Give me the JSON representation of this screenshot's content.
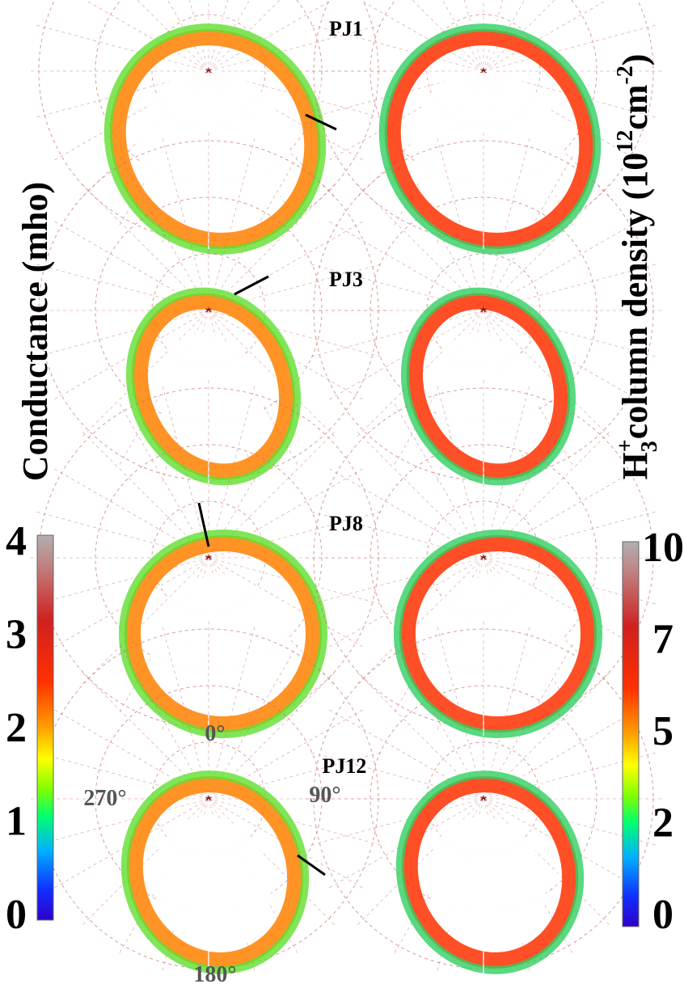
{
  "chart_data": {
    "type": "heatmap",
    "projection": "polar (north-pole view of Jupiter's aurora)",
    "perijoves": [
      {
        "label": "PJ1"
      },
      {
        "label": "PJ3"
      },
      {
        "label": "PJ8"
      },
      {
        "label": "PJ12"
      }
    ],
    "panels": [
      "conductance",
      "column_density"
    ],
    "angle_labels": [
      "0°",
      "90°",
      "180°",
      "270°"
    ],
    "left_colorbar": {
      "label": "Conductance (mho)",
      "ticks": [
        "0",
        "1",
        "2",
        "3",
        "4"
      ],
      "range": [
        0,
        4
      ]
    },
    "right_colorbar": {
      "label_parts": {
        "base": "H",
        "sub": "3",
        "sup": "+",
        "mid": "column density (10",
        "exp": "12",
        "unit": "cm",
        "unit_exp": "-2",
        "end": ")"
      },
      "ticks": [
        "0",
        "2",
        "5",
        "7",
        "10"
      ],
      "range": [
        0,
        10
      ]
    },
    "colormap": [
      "#3000c8",
      "#1030ff",
      "#00b0ff",
      "#00ff70",
      "#80ff00",
      "#ffff00",
      "#ffa000",
      "#ff3000",
      "#d02020",
      "#c08080",
      "#b0b0b0"
    ],
    "grid": true
  }
}
